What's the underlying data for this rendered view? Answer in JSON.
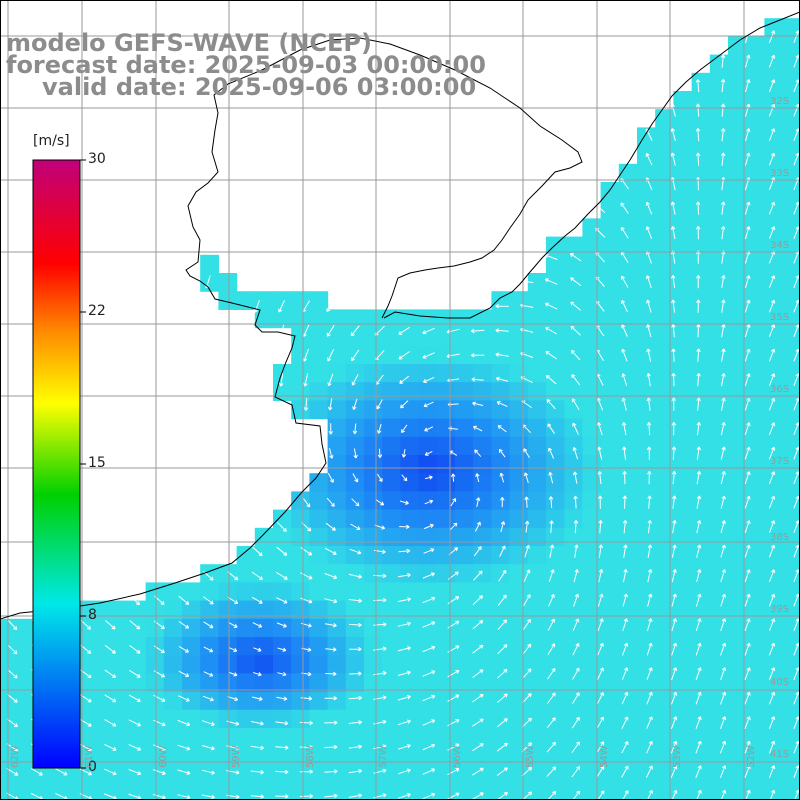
{
  "title": {
    "model": "modelo GEFS-WAVE (NCEP)",
    "forecast_date": "forecast date: 2025-09-03 00:00:00",
    "valid_date": "valid date: 2025-09-06 03:00:00"
  },
  "colorbar": {
    "unit": "[m/s]",
    "ticks": [
      "30",
      "22",
      "15",
      "8",
      "0"
    ],
    "min": 0,
    "max": 30,
    "colors": [
      "#0000ff",
      "#00e8e8",
      "#00d000",
      "#ffff00",
      "#ff8800",
      "#ff0000",
      "#c0007a"
    ]
  },
  "map": {
    "parameter": "wind speed and direction",
    "grid": "on",
    "colors": {
      "land": "#ffffff",
      "coastline": "#000000",
      "grid_lines": "#999999",
      "arrows": "#ffffff",
      "calm": "#0a2ef0",
      "moderate": "#1e8ff5",
      "strong": "#33e0e6"
    },
    "lat_labels": [
      "32S",
      "33S",
      "34S",
      "35S",
      "36S",
      "37S",
      "38S",
      "39S",
      "40S",
      "41S"
    ],
    "lon_labels": [
      "62W",
      "61W",
      "60W",
      "59W",
      "58W",
      "57W",
      "56W",
      "55W",
      "54W",
      "53W",
      "52W"
    ]
  }
}
